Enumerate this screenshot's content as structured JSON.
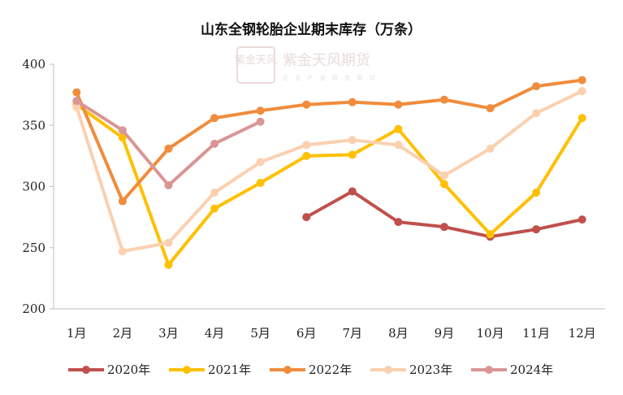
{
  "chart_data": {
    "type": "line",
    "title": "山东全钢轮胎企业期末库存（万条）",
    "categories": [
      "1月",
      "2月",
      "3月",
      "4月",
      "5月",
      "6月",
      "7月",
      "8月",
      "9月",
      "10月",
      "11月",
      "12月"
    ],
    "ylim": [
      200,
      400
    ],
    "yticks": [
      200,
      250,
      300,
      350,
      400
    ],
    "grid": false,
    "legend_position": "bottom",
    "series": [
      {
        "name": "2020年",
        "color": "#c0504d",
        "values": [
          null,
          null,
          null,
          null,
          null,
          275,
          296,
          271,
          267,
          259,
          265,
          273
        ]
      },
      {
        "name": "2021年",
        "color": "#ffc000",
        "values": [
          367,
          340,
          236,
          282,
          303,
          325,
          326,
          347,
          302,
          261,
          295,
          356
        ]
      },
      {
        "name": "2022年",
        "color": "#f08c3c",
        "values": [
          377,
          288,
          331,
          356,
          362,
          367,
          369,
          367,
          371,
          364,
          382,
          387
        ]
      },
      {
        "name": "2023年",
        "color": "#fbd0b0",
        "values": [
          365,
          247,
          254,
          295,
          320,
          334,
          338,
          334,
          309,
          331,
          360,
          378
        ]
      },
      {
        "name": "2024年",
        "color": "#d99694",
        "values": [
          370,
          346,
          301,
          335,
          353,
          null,
          null,
          null,
          null,
          null,
          null,
          null
        ]
      }
    ]
  },
  "watermark": {
    "logo_text": "紫金天风",
    "name": "紫金天风期货",
    "slogan": "企 业 产 业 研 究 驱 动"
  }
}
